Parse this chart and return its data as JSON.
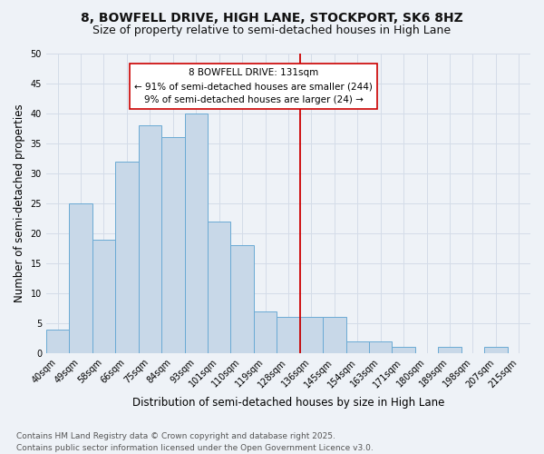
{
  "title1": "8, BOWFELL DRIVE, HIGH LANE, STOCKPORT, SK6 8HZ",
  "title2": "Size of property relative to semi-detached houses in High Lane",
  "xlabel": "Distribution of semi-detached houses by size in High Lane",
  "ylabel": "Number of semi-detached properties",
  "bin_labels": [
    "40sqm",
    "49sqm",
    "58sqm",
    "66sqm",
    "75sqm",
    "84sqm",
    "93sqm",
    "101sqm",
    "110sqm",
    "119sqm",
    "128sqm",
    "136sqm",
    "145sqm",
    "154sqm",
    "163sqm",
    "171sqm",
    "180sqm",
    "189sqm",
    "198sqm",
    "207sqm",
    "215sqm"
  ],
  "bin_values": [
    4,
    25,
    19,
    32,
    38,
    36,
    40,
    22,
    18,
    7,
    6,
    6,
    6,
    2,
    2,
    1,
    0,
    1,
    0,
    1,
    0
  ],
  "bar_color": "#c8d8e8",
  "bar_edge_color": "#6aaad4",
  "vline_x_idx": 10.5,
  "vline_color": "#cc0000",
  "annotation_line1": "8 BOWFELL DRIVE: 131sqm",
  "annotation_line2": "← 91% of semi-detached houses are smaller (244)",
  "annotation_line3": "9% of semi-detached houses are larger (24) →",
  "annotation_box_color": "#ffffff",
  "annotation_box_edge": "#cc0000",
  "ylim": [
    0,
    50
  ],
  "yticks": [
    0,
    5,
    10,
    15,
    20,
    25,
    30,
    35,
    40,
    45,
    50
  ],
  "grid_color": "#d4dce8",
  "bg_color": "#eef2f7",
  "footnote": "Contains HM Land Registry data © Crown copyright and database right 2025.\nContains public sector information licensed under the Open Government Licence v3.0.",
  "title_fontsize": 10,
  "subtitle_fontsize": 9,
  "axis_label_fontsize": 8.5,
  "tick_fontsize": 7,
  "annotation_fontsize": 7.5,
  "footnote_fontsize": 6.5
}
